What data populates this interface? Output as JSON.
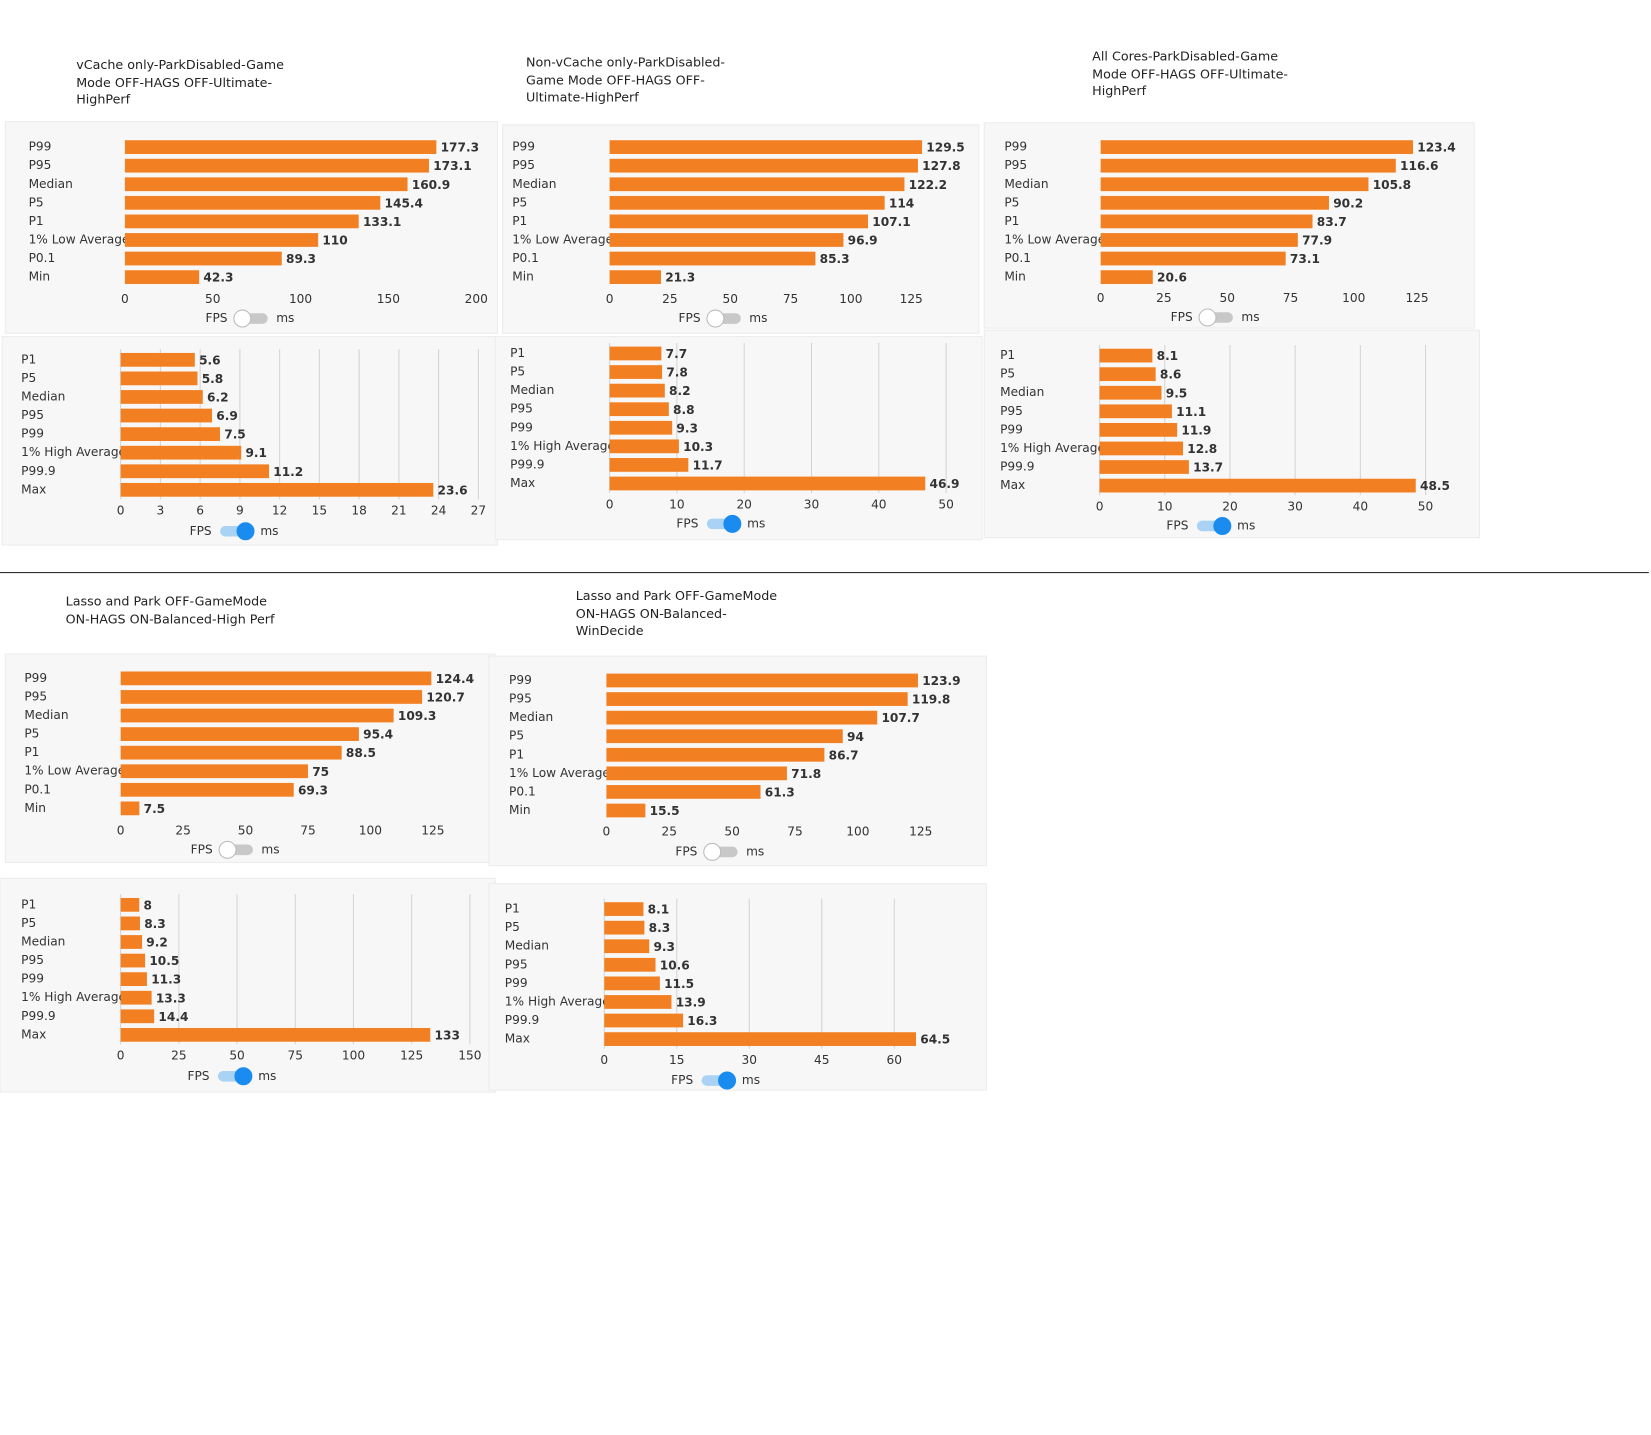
{
  "chart_data": [
    {
      "type": "barh",
      "title": "vCache only-ParkDisabled-Game Mode OFF-HAGS OFF-Ultimate-HighPerf",
      "categories": [
        "P99",
        "P95",
        "Median",
        "P5",
        "P1",
        "1% Low Average",
        "P0.1",
        "Min"
      ],
      "values": [
        177.3,
        173.1,
        160.9,
        145.4,
        133.1,
        110,
        89.3,
        42.3
      ],
      "color": "#f28022",
      "xlim": [
        0,
        200
      ],
      "xticks": [
        0,
        50,
        100,
        150,
        200
      ],
      "grid": false,
      "toggle_labels": [
        "FPS",
        "ms"
      ],
      "toggle_on": false
    },
    {
      "type": "barh",
      "categories": [
        "P1",
        "P5",
        "Median",
        "P95",
        "P99",
        "1% High Average",
        "P99.9",
        "Max"
      ],
      "values": [
        5.6,
        5.8,
        6.2,
        6.9,
        7.5,
        9.1,
        11.2,
        23.6
      ],
      "color": "#f28022",
      "xlim": [
        0,
        27
      ],
      "xticks": [
        0,
        3,
        6,
        9,
        12,
        15,
        18,
        21,
        24,
        27
      ],
      "grid": true,
      "toggle_labels": [
        "FPS",
        "ms"
      ],
      "toggle_on": true
    },
    {
      "type": "barh",
      "title": "Non-vCache only-ParkDisabled-Game Mode OFF-HAGS OFF-Ultimate-HighPerf",
      "categories": [
        "P99",
        "P95",
        "Median",
        "P5",
        "P1",
        "1% Low Average",
        "P0.1",
        "Min"
      ],
      "values": [
        129.5,
        127.8,
        122.2,
        114,
        107.1,
        96.9,
        85.3,
        21.3
      ],
      "color": "#f28022",
      "xlim": [
        0,
        125
      ],
      "xticks": [
        0,
        25,
        50,
        75,
        100,
        125
      ],
      "grid": false,
      "toggle_labels": [
        "FPS",
        "ms"
      ],
      "toggle_on": false
    },
    {
      "type": "barh",
      "categories": [
        "P1",
        "P5",
        "Median",
        "P95",
        "P99",
        "1% High Average",
        "P99.9",
        "Max"
      ],
      "values": [
        7.7,
        7.8,
        8.2,
        8.8,
        9.3,
        10.3,
        11.7,
        46.9
      ],
      "color": "#f28022",
      "xlim": [
        0,
        50
      ],
      "xticks": [
        0,
        10,
        20,
        30,
        40,
        50
      ],
      "grid": true,
      "toggle_labels": [
        "FPS",
        "ms"
      ],
      "toggle_on": true
    },
    {
      "type": "barh",
      "title": "All Cores-ParkDisabled-Game Mode OFF-HAGS OFF-Ultimate-HighPerf",
      "categories": [
        "P99",
        "P95",
        "Median",
        "P5",
        "P1",
        "1% Low Average",
        "P0.1",
        "Min"
      ],
      "values": [
        123.4,
        116.6,
        105.8,
        90.2,
        83.7,
        77.9,
        73.1,
        20.6
      ],
      "color": "#f28022",
      "xlim": [
        0,
        125
      ],
      "xticks": [
        0,
        25,
        50,
        75,
        100,
        125
      ],
      "grid": false,
      "toggle_labels": [
        "FPS",
        "ms"
      ],
      "toggle_on": false
    },
    {
      "type": "barh",
      "categories": [
        "P1",
        "P5",
        "Median",
        "P95",
        "P99",
        "1% High Average",
        "P99.9",
        "Max"
      ],
      "values": [
        8.1,
        8.6,
        9.5,
        11.1,
        11.9,
        12.8,
        13.7,
        48.5
      ],
      "color": "#f28022",
      "xlim": [
        0,
        50
      ],
      "xticks": [
        0,
        10,
        20,
        30,
        40,
        50
      ],
      "grid": true,
      "toggle_labels": [
        "FPS",
        "ms"
      ],
      "toggle_on": true
    },
    {
      "type": "barh",
      "title": "Lasso and Park OFF-GameMode ON-HAGS ON-Balanced-High Perf",
      "categories": [
        "P99",
        "P95",
        "Median",
        "P5",
        "P1",
        "1% Low Average",
        "P0.1",
        "Min"
      ],
      "values": [
        124.4,
        120.7,
        109.3,
        95.4,
        88.5,
        75,
        69.3,
        7.5
      ],
      "color": "#f28022",
      "xlim": [
        0,
        125
      ],
      "xticks": [
        0,
        25,
        50,
        75,
        100,
        125
      ],
      "grid": false,
      "toggle_labels": [
        "FPS",
        "ms"
      ],
      "toggle_on": false
    },
    {
      "type": "barh",
      "categories": [
        "P1",
        "P5",
        "Median",
        "P95",
        "P99",
        "1% High Average",
        "P99.9",
        "Max"
      ],
      "values": [
        8,
        8.3,
        9.2,
        10.5,
        11.3,
        13.3,
        14.4,
        133
      ],
      "color": "#f28022",
      "xlim": [
        0,
        150
      ],
      "xticks": [
        0,
        25,
        50,
        75,
        100,
        125,
        150
      ],
      "grid": true,
      "toggle_labels": [
        "FPS",
        "ms"
      ],
      "toggle_on": true
    },
    {
      "type": "barh",
      "title": "Lasso and Park OFF-GameMode ON-HAGS ON-Balanced-WinDecide",
      "categories": [
        "P99",
        "P95",
        "Median",
        "P5",
        "P1",
        "1% Low Average",
        "P0.1",
        "Min"
      ],
      "values": [
        123.9,
        119.8,
        107.7,
        94,
        86.7,
        71.8,
        61.3,
        15.5
      ],
      "color": "#f28022",
      "xlim": [
        0,
        125
      ],
      "xticks": [
        0,
        25,
        50,
        75,
        100,
        125
      ],
      "grid": false,
      "toggle_labels": [
        "FPS",
        "ms"
      ],
      "toggle_on": false
    },
    {
      "type": "barh",
      "categories": [
        "P1",
        "P5",
        "Median",
        "P95",
        "P99",
        "1% High Average",
        "P99.9",
        "Max"
      ],
      "values": [
        8.1,
        8.3,
        9.3,
        10.6,
        11.5,
        13.9,
        16.3,
        64.5
      ],
      "color": "#f28022",
      "xlim": [
        0,
        60
      ],
      "xticks": [
        0,
        15,
        30,
        45,
        60
      ],
      "grid": true,
      "toggle_labels": [
        "FPS",
        "ms"
      ],
      "toggle_on": true
    }
  ]
}
